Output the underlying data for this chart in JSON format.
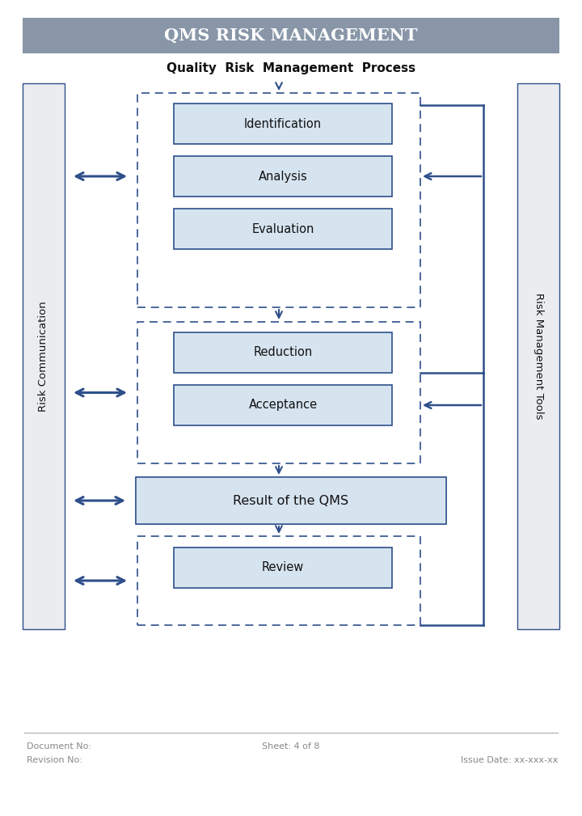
{
  "title_bar_text": "QMS RISK MANAGEMENT",
  "title_bar_color": "#8896a8",
  "title_bar_text_color": "#ffffff",
  "subtitle": "Quality  Risk  Management  Process",
  "bg_color": "#ffffff",
  "box_fill": "#d6e4f0",
  "box_edge": "#2e4f8a",
  "dashed_box_edge": "#2e4f8a",
  "arrow_color": "#2e4f8a",
  "side_bar_fill": "#eaecf0",
  "side_bar_edge": "#2e4f8a",
  "left_label": "Risk Communication",
  "right_label": "Risk Management Tools",
  "footer_left1": "Document No:",
  "footer_left2": "Revision No:",
  "footer_center": "Sheet: 4 of 8",
  "footer_right": "Issue Date: xx-xxx-xx",
  "footer_color": "#888888",
  "title_font": "serif",
  "body_font": "sans-serif"
}
